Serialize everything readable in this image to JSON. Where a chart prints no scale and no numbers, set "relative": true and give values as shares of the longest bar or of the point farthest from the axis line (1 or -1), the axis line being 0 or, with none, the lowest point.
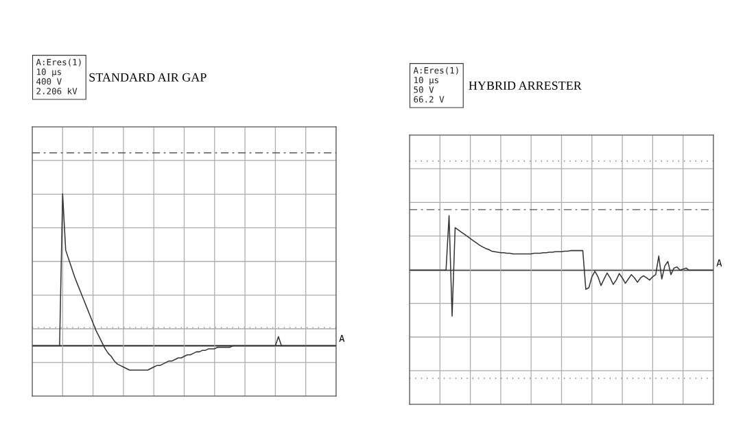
{
  "chart_data": [
    {
      "type": "line",
      "title": "STANDARD AIR GAP",
      "relative": true,
      "grid": true,
      "tick_labels": false,
      "annotations": [
        "A:Eres(1)",
        "10 µs",
        "400 V",
        "2.206 kV",
        "A"
      ],
      "ref_lines": [
        {
          "axis": "y",
          "value": 1.27,
          "line_style": "dashed",
          "color": "#555555"
        },
        {
          "axis": "y",
          "value": 0.12,
          "line_style": "dotted",
          "color": "#777777"
        }
      ],
      "categories": [
        null,
        null,
        null,
        null,
        null,
        null,
        null,
        null,
        null,
        null,
        null,
        null,
        null,
        null,
        null,
        null,
        null,
        null,
        null,
        null,
        null,
        null,
        null,
        null,
        null,
        null,
        null,
        null,
        null,
        null,
        null,
        null,
        null,
        null,
        null,
        null,
        null,
        null,
        null,
        null,
        null,
        null,
        null,
        null,
        null,
        null,
        null,
        null,
        null,
        null,
        null,
        null,
        null,
        null,
        null,
        null,
        null,
        null,
        null,
        null,
        null,
        null,
        null,
        null,
        null,
        null,
        null,
        null,
        null,
        null,
        null,
        null,
        null,
        null,
        null,
        null,
        null,
        null,
        null,
        null,
        null,
        null,
        null,
        null,
        null,
        null,
        null,
        null,
        null,
        null,
        null,
        null,
        null,
        null,
        null,
        null,
        null,
        null,
        null,
        null,
        null
      ],
      "series": [
        {
          "color": "#333333",
          "values": [
            0,
            0,
            0,
            0,
            0,
            0,
            0,
            0,
            0,
            0,
            1,
            0.63,
            0.57,
            0.51,
            0.45,
            0.4,
            0.35,
            0.3,
            0.25,
            0.2,
            0.15,
            0.1,
            0.06,
            0.02,
            -0.02,
            -0.05,
            -0.07,
            -0.1,
            -0.12,
            -0.13,
            -0.14,
            -0.15,
            -0.16,
            -0.16,
            -0.16,
            -0.16,
            -0.16,
            -0.16,
            -0.16,
            -0.15,
            -0.14,
            -0.13,
            -0.13,
            -0.12,
            -0.11,
            -0.1,
            -0.1,
            -0.09,
            -0.08,
            -0.08,
            -0.07,
            -0.06,
            -0.06,
            -0.05,
            -0.04,
            -0.04,
            -0.03,
            -0.03,
            -0.02,
            -0.02,
            -0.02,
            -0.01,
            -0.01,
            -0.01,
            -0.01,
            -0.01,
            0,
            0,
            0,
            0,
            0,
            0,
            0,
            0,
            0,
            0,
            0,
            0,
            0,
            0,
            0,
            0.06,
            0,
            0,
            0,
            0,
            0,
            0,
            0,
            0,
            0,
            0,
            0,
            0,
            0,
            0,
            0,
            0,
            0,
            0,
            0
          ]
        }
      ]
    },
    {
      "type": "line",
      "title": "HYBRID ARRESTER",
      "relative": true,
      "grid": true,
      "tick_labels": false,
      "annotations": [
        "A:Eres(1)",
        "10 µs",
        "50 V",
        "66.2 V",
        "A"
      ],
      "ref_lines": [
        {
          "axis": "y",
          "value": 1.11,
          "line_style": "dashed",
          "color": "#555555"
        },
        {
          "axis": "y",
          "value": 2.0,
          "line_style": "dotted",
          "color": "#777777"
        },
        {
          "axis": "y",
          "value": -1.98,
          "line_style": "dotted",
          "color": "#777777"
        }
      ],
      "categories": [
        null,
        null,
        null,
        null,
        null,
        null,
        null,
        null,
        null,
        null,
        null,
        null,
        null,
        null,
        null,
        null,
        null,
        null,
        null,
        null,
        null,
        null,
        null,
        null,
        null,
        null,
        null,
        null,
        null,
        null,
        null,
        null,
        null,
        null,
        null,
        null,
        null,
        null,
        null,
        null,
        null,
        null,
        null,
        null,
        null,
        null,
        null,
        null,
        null,
        null,
        null,
        null,
        null,
        null,
        null,
        null,
        null,
        null,
        null,
        null,
        null,
        null,
        null,
        null,
        null,
        null,
        null,
        null,
        null,
        null,
        null,
        null,
        null,
        null,
        null,
        null,
        null,
        null,
        null,
        null,
        null,
        null,
        null,
        null,
        null,
        null,
        null,
        null,
        null,
        null,
        null,
        null,
        null,
        null,
        null,
        null,
        null,
        null,
        null,
        null,
        null
      ],
      "series": [
        {
          "color": "#333333",
          "values": [
            0,
            0,
            0,
            0,
            0,
            0,
            0,
            0,
            0,
            0,
            0,
            0,
            0,
            1,
            -0.84,
            0.78,
            0.74,
            0.7,
            0.66,
            0.62,
            0.58,
            0.54,
            0.5,
            0.46,
            0.43,
            0.4,
            0.38,
            0.35,
            0.34,
            0.33,
            0.32,
            0.32,
            0.31,
            0.31,
            0.3,
            0.3,
            0.3,
            0.3,
            0.3,
            0.3,
            0.3,
            0.31,
            0.31,
            0.31,
            0.32,
            0.32,
            0.33,
            0.33,
            0.34,
            0.34,
            0.34,
            0.35,
            0.35,
            0.36,
            0.36,
            0.36,
            0.36,
            0.36,
            -0.35,
            -0.32,
            -0.12,
            -0.02,
            -0.12,
            -0.28,
            -0.16,
            -0.05,
            -0.14,
            -0.26,
            -0.18,
            -0.06,
            -0.14,
            -0.24,
            -0.16,
            -0.08,
            -0.14,
            -0.22,
            -0.14,
            -0.1,
            -0.14,
            -0.18,
            -0.12,
            -0.08,
            0.26,
            -0.16,
            0.08,
            0.16,
            -0.08,
            0.04,
            0.06,
            0,
            0.02,
            0.04,
            0,
            0,
            0,
            0,
            0,
            0,
            0,
            0,
            0
          ]
        }
      ]
    }
  ]
}
